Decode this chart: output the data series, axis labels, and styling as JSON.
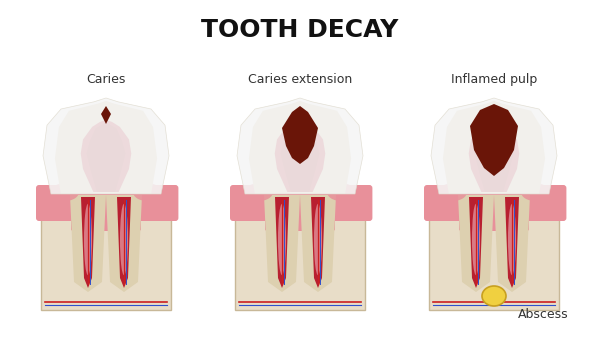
{
  "title": "TOOTH DECAY",
  "title_fontsize": 18,
  "title_fontweight": "bold",
  "labels": [
    "Caries",
    "Caries extension",
    "Inflamed pulp"
  ],
  "label_abscess": "Abscess",
  "label_fontsize": 9,
  "bg_color": "#ffffff",
  "colors": {
    "bone_beige": "#e8ddc8",
    "bone_edge": "#c8b898",
    "gum_pink": "#e8909a",
    "gum_light": "#f0b8b0",
    "dentin": "#ddd0b0",
    "dentin_dark": "#c8b888",
    "pulp_red": "#b82030",
    "pulp_dark": "#8b1010",
    "pulp_medium": "#c03040",
    "enamel_white": "#f5f5f5",
    "enamel_edge": "#e0dcd0",
    "root_pink": "#e8a0a8",
    "root_white": "#f0e8e0",
    "nerve_red": "#cc2020",
    "nerve_blue": "#3050cc",
    "decay_brown": "#6a1508",
    "abscess_yellow": "#f0d040",
    "abscess_edge": "#c8a020",
    "shadow_light": "#d8cdb8"
  },
  "positions": [
    0.17,
    0.5,
    0.83
  ],
  "figsize": [
    6.0,
    3.6
  ],
  "dpi": 100
}
